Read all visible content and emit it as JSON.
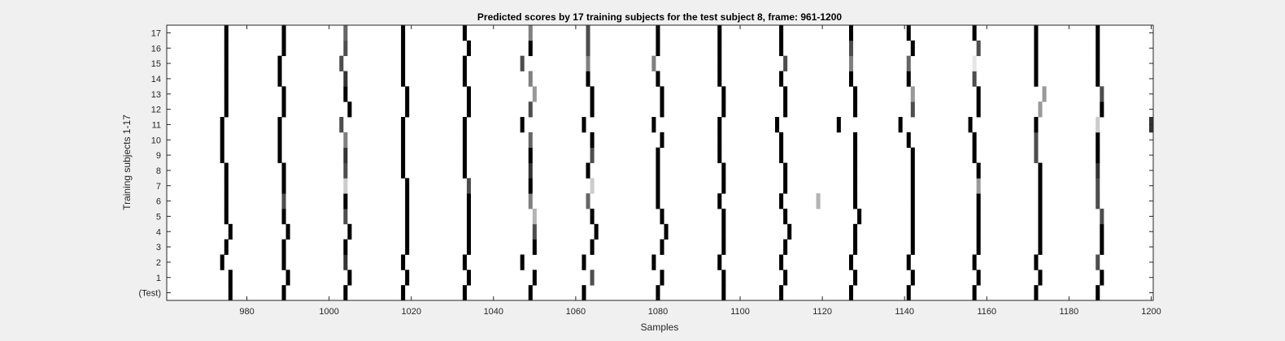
{
  "chart_data": {
    "type": "heatmap",
    "title": "Predicted scores by 17 training subjects for the test subject 8, frame: 961-1200",
    "xlabel": "Samples",
    "ylabel": "Training subjects 1-17",
    "xlim": [
      961,
      1200
    ],
    "xticks": [
      980,
      1000,
      1020,
      1040,
      1060,
      1080,
      1100,
      1120,
      1140,
      1160,
      1180,
      1200
    ],
    "ylabels": [
      "(Test)",
      "1",
      "2",
      "3",
      "4",
      "5",
      "6",
      "7",
      "8",
      "9",
      "10",
      "11",
      "12",
      "13",
      "14",
      "15",
      "16",
      "17"
    ],
    "value_range": [
      0,
      1
    ],
    "colormap": "gray (0 = black, 1 = white)",
    "default_value": 1,
    "base_pulses": [
      976,
      990,
      1005,
      1019,
      1034,
      1050,
      1064,
      1081,
      1096,
      1111,
      1128,
      1142,
      1158,
      1173,
      1188
    ],
    "rows": [
      {
        "label": "(Test)",
        "pulses": [
          [
            976,
            0
          ],
          [
            989,
            0
          ],
          [
            1004,
            0
          ],
          [
            1018,
            0
          ],
          [
            1033,
            0
          ],
          [
            1049,
            0
          ],
          [
            1062,
            0
          ],
          [
            1080,
            0
          ],
          [
            1096,
            0
          ],
          [
            1110,
            0
          ],
          [
            1127,
            0
          ],
          [
            1141,
            0
          ],
          [
            1157,
            0
          ],
          [
            1172,
            0
          ],
          [
            1187,
            0
          ]
        ]
      },
      {
        "label": "1",
        "pulses": [
          [
            976,
            0
          ],
          [
            990,
            0
          ],
          [
            1005,
            0
          ],
          [
            1019,
            0
          ],
          [
            1034,
            0
          ],
          [
            1050,
            0
          ],
          [
            1064,
            0.3
          ],
          [
            1081,
            0
          ],
          [
            1096,
            0
          ],
          [
            1111,
            0
          ],
          [
            1128,
            0
          ],
          [
            1142,
            0
          ],
          [
            1158,
            0
          ],
          [
            1173,
            0
          ],
          [
            1188,
            0
          ]
        ]
      },
      {
        "label": "2",
        "pulses": [
          [
            974,
            0
          ],
          [
            989,
            0
          ],
          [
            1004,
            0.2
          ],
          [
            1018,
            0
          ],
          [
            1033,
            0
          ],
          [
            1047,
            0
          ],
          [
            1062,
            0
          ],
          [
            1079,
            0
          ],
          [
            1095,
            0
          ],
          [
            1110,
            0
          ],
          [
            1127,
            0
          ],
          [
            1141,
            0
          ],
          [
            1157,
            0
          ],
          [
            1172,
            0
          ],
          [
            1187,
            0.3
          ]
        ]
      },
      {
        "label": "3",
        "pulses": [
          [
            975,
            0
          ],
          [
            989,
            0
          ],
          [
            1004,
            0
          ],
          [
            1019,
            0
          ],
          [
            1034,
            0
          ],
          [
            1050,
            0
          ],
          [
            1064,
            0
          ],
          [
            1081,
            0
          ],
          [
            1096,
            0
          ],
          [
            1111,
            0
          ],
          [
            1128,
            0
          ],
          [
            1142,
            0
          ],
          [
            1158,
            0
          ],
          [
            1173,
            0
          ],
          [
            1188,
            0
          ]
        ]
      },
      {
        "label": "4",
        "pulses": [
          [
            976,
            0
          ],
          [
            990,
            0
          ],
          [
            1005,
            0
          ],
          [
            1019,
            0
          ],
          [
            1034,
            0
          ],
          [
            1050,
            0.3
          ],
          [
            1065,
            0
          ],
          [
            1082,
            0
          ],
          [
            1096,
            0
          ],
          [
            1112,
            0
          ],
          [
            1128,
            0
          ],
          [
            1142,
            0
          ],
          [
            1158,
            0
          ],
          [
            1173,
            0
          ],
          [
            1188,
            0
          ]
        ]
      },
      {
        "label": "5",
        "pulses": [
          [
            975,
            0
          ],
          [
            989,
            0
          ],
          [
            1004,
            0.3
          ],
          [
            1019,
            0
          ],
          [
            1034,
            0
          ],
          [
            1050,
            0.7
          ],
          [
            1064,
            0
          ],
          [
            1081,
            0
          ],
          [
            1096,
            0
          ],
          [
            1111,
            0
          ],
          [
            1129,
            0
          ],
          [
            1142,
            0
          ],
          [
            1158,
            0
          ],
          [
            1173,
            0
          ],
          [
            1188,
            0.3
          ]
        ]
      },
      {
        "label": "6",
        "pulses": [
          [
            975,
            0
          ],
          [
            989,
            0.3
          ],
          [
            1004,
            0
          ],
          [
            1019,
            0
          ],
          [
            1034,
            0
          ],
          [
            1049,
            0.5
          ],
          [
            1063,
            0.4
          ],
          [
            1080,
            0
          ],
          [
            1095,
            0
          ],
          [
            1110,
            0
          ],
          [
            1119,
            0.7
          ],
          [
            1128,
            0
          ],
          [
            1142,
            0
          ],
          [
            1158,
            0
          ],
          [
            1173,
            0
          ],
          [
            1187,
            0.3
          ]
        ]
      },
      {
        "label": "7",
        "pulses": [
          [
            975,
            0
          ],
          [
            989,
            0
          ],
          [
            1004,
            0.8
          ],
          [
            1019,
            0
          ],
          [
            1034,
            0.3
          ],
          [
            1049,
            0
          ],
          [
            1064,
            0.8
          ],
          [
            1080,
            0
          ],
          [
            1096,
            0
          ],
          [
            1111,
            0
          ],
          [
            1128,
            0
          ],
          [
            1142,
            0
          ],
          [
            1158,
            0.6
          ],
          [
            1173,
            0
          ],
          [
            1187,
            0.3
          ]
        ]
      },
      {
        "label": "8",
        "pulses": [
          [
            975,
            0
          ],
          [
            989,
            0
          ],
          [
            1004,
            0.3
          ],
          [
            1018,
            0
          ],
          [
            1033,
            0
          ],
          [
            1049,
            0.2
          ],
          [
            1063,
            0
          ],
          [
            1080,
            0
          ],
          [
            1096,
            0
          ],
          [
            1111,
            0
          ],
          [
            1128,
            0
          ],
          [
            1142,
            0
          ],
          [
            1158,
            0
          ],
          [
            1173,
            0
          ],
          [
            1187,
            0.2
          ]
        ]
      },
      {
        "label": "9",
        "pulses": [
          [
            974,
            0
          ],
          [
            988,
            0
          ],
          [
            1004,
            0.2
          ],
          [
            1018,
            0
          ],
          [
            1033,
            0
          ],
          [
            1049,
            0
          ],
          [
            1064,
            0.3
          ],
          [
            1080,
            0
          ],
          [
            1095,
            0
          ],
          [
            1110,
            0
          ],
          [
            1128,
            0
          ],
          [
            1142,
            0
          ],
          [
            1157,
            0
          ],
          [
            1172,
            0.3
          ],
          [
            1187,
            0
          ]
        ]
      },
      {
        "label": "10",
        "pulses": [
          [
            974,
            0
          ],
          [
            988,
            0
          ],
          [
            1004,
            0.5
          ],
          [
            1018,
            0
          ],
          [
            1033,
            0
          ],
          [
            1049,
            0.4
          ],
          [
            1064,
            0
          ],
          [
            1081,
            0
          ],
          [
            1095,
            0
          ],
          [
            1110,
            0
          ],
          [
            1128,
            0
          ],
          [
            1141,
            0
          ],
          [
            1157,
            0
          ],
          [
            1172,
            0.3
          ],
          [
            1187,
            0
          ]
        ]
      },
      {
        "label": "11",
        "pulses": [
          [
            974,
            0
          ],
          [
            988,
            0
          ],
          [
            1003,
            0.3
          ],
          [
            1018,
            0
          ],
          [
            1033,
            0
          ],
          [
            1047,
            0
          ],
          [
            1062,
            0
          ],
          [
            1079,
            0
          ],
          [
            1095,
            0
          ],
          [
            1109,
            0
          ],
          [
            1124,
            0
          ],
          [
            1139,
            0
          ],
          [
            1156,
            0
          ],
          [
            1172,
            0
          ],
          [
            1187,
            0.8
          ],
          [
            1200,
            0.2
          ]
        ]
      },
      {
        "label": "12",
        "pulses": [
          [
            975,
            0
          ],
          [
            989,
            0
          ],
          [
            1005,
            0
          ],
          [
            1019,
            0
          ],
          [
            1034,
            0
          ],
          [
            1049,
            0.3
          ],
          [
            1064,
            0
          ],
          [
            1081,
            0
          ],
          [
            1096,
            0
          ],
          [
            1111,
            0
          ],
          [
            1128,
            0
          ],
          [
            1142,
            0.3
          ],
          [
            1158,
            0
          ],
          [
            1173,
            0.6
          ],
          [
            1188,
            0
          ]
        ]
      },
      {
        "label": "13",
        "pulses": [
          [
            975,
            0
          ],
          [
            989,
            0
          ],
          [
            1004,
            0
          ],
          [
            1019,
            0
          ],
          [
            1034,
            0
          ],
          [
            1050,
            0.6
          ],
          [
            1064,
            0
          ],
          [
            1081,
            0
          ],
          [
            1096,
            0
          ],
          [
            1111,
            0
          ],
          [
            1128,
            0
          ],
          [
            1142,
            0.6
          ],
          [
            1158,
            0
          ],
          [
            1174,
            0.6
          ],
          [
            1188,
            0.3
          ]
        ]
      },
      {
        "label": "14",
        "pulses": [
          [
            975,
            0
          ],
          [
            988,
            0
          ],
          [
            1004,
            0.2
          ],
          [
            1018,
            0
          ],
          [
            1033,
            0
          ],
          [
            1049,
            0.5
          ],
          [
            1063,
            0
          ],
          [
            1080,
            0
          ],
          [
            1095,
            0
          ],
          [
            1110,
            0
          ],
          [
            1127,
            0
          ],
          [
            1141,
            0
          ],
          [
            1157,
            0.3
          ],
          [
            1172,
            0
          ],
          [
            1187,
            0
          ]
        ]
      },
      {
        "label": "15",
        "pulses": [
          [
            975,
            0
          ],
          [
            988,
            0
          ],
          [
            1003,
            0.3
          ],
          [
            1018,
            0
          ],
          [
            1033,
            0
          ],
          [
            1047,
            0.3
          ],
          [
            1063,
            0.5
          ],
          [
            1079,
            0.5
          ],
          [
            1095,
            0
          ],
          [
            1111,
            0.3
          ],
          [
            1127,
            0.5
          ],
          [
            1141,
            0.4
          ],
          [
            1157,
            0.9
          ],
          [
            1172,
            0
          ],
          [
            1187,
            0
          ]
        ]
      },
      {
        "label": "16",
        "pulses": [
          [
            975,
            0
          ],
          [
            989,
            0
          ],
          [
            1004,
            0.3
          ],
          [
            1018,
            0
          ],
          [
            1034,
            0
          ],
          [
            1049,
            0
          ],
          [
            1063,
            0.3
          ],
          [
            1080,
            0
          ],
          [
            1095,
            0
          ],
          [
            1110,
            0
          ],
          [
            1127,
            0.3
          ],
          [
            1142,
            0
          ],
          [
            1158,
            0.3
          ],
          [
            1172,
            0
          ],
          [
            1187,
            0
          ]
        ]
      },
      {
        "label": "17",
        "pulses": [
          [
            975,
            0
          ],
          [
            989,
            0
          ],
          [
            1004,
            0.4
          ],
          [
            1018,
            0
          ],
          [
            1033,
            0
          ],
          [
            1049,
            0.5
          ],
          [
            1063,
            0.3
          ],
          [
            1080,
            0
          ],
          [
            1095,
            0
          ],
          [
            1110,
            0
          ],
          [
            1127,
            0
          ],
          [
            1141,
            0
          ],
          [
            1157,
            0
          ],
          [
            1172,
            0
          ],
          [
            1187,
            0
          ]
        ]
      }
    ]
  }
}
